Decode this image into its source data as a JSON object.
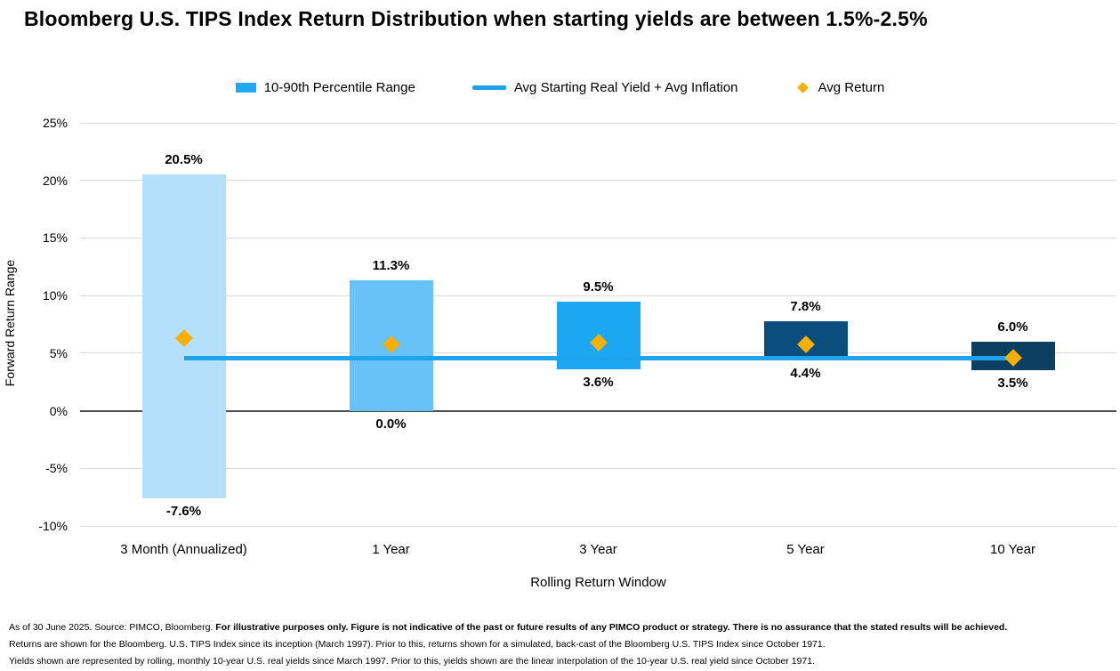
{
  "title": "Bloomberg U.S. TIPS Index Return Distribution when starting yields are between 1.5%-2.5%",
  "legend": [
    {
      "label": "10-90th Percentile Range",
      "icon": "bar-swatch-icon",
      "color": "#1FA9F2"
    },
    {
      "label": "Avg Starting Real Yield + Avg Inflation",
      "icon": "line-swatch-icon",
      "color": "#1FA0E8"
    },
    {
      "label": "Avg Return",
      "icon": "diamond-swatch-icon",
      "color": "#F8AF00"
    }
  ],
  "chart_data": {
    "type": "bar",
    "subtype": "floating-range-bars with horizontal reference line and diamond markers",
    "title": "Bloomberg U.S. TIPS Index Return Distribution when starting yields are between 1.5%-2.5%",
    "categories": [
      "3 Month (Annualized)",
      "1 Year",
      "3 Year",
      "5 Year",
      "10 Year"
    ],
    "series": [
      {
        "name": "10-90th Percentile Range",
        "type": "range_bar",
        "ranges": [
          {
            "low": -7.6,
            "high": 20.5
          },
          {
            "low": 0.0,
            "high": 11.3
          },
          {
            "low": 3.6,
            "high": 9.5
          },
          {
            "low": 4.4,
            "high": 7.8
          },
          {
            "low": 3.5,
            "high": 6.0
          }
        ],
        "bar_colors": [
          "#B5E0FB",
          "#67C2FA",
          "#1CA7F2",
          "#0B4D7C",
          "#0D3F63"
        ]
      },
      {
        "name": "Avg Starting Real Yield + Avg Inflation",
        "type": "line",
        "value": 4.6,
        "color": "#1FA3EC",
        "extent": "first-category-center to last-category-center"
      },
      {
        "name": "Avg Return",
        "type": "scatter",
        "marker": "diamond",
        "color": "#F8AF00",
        "values": [
          6.3,
          5.8,
          5.9,
          5.8,
          4.6
        ]
      }
    ],
    "xlabel": "Rolling Return Window",
    "ylabel": "Forward Return Range",
    "ylim": [
      -10,
      25
    ],
    "yticks": [
      25,
      20,
      15,
      10,
      5,
      0,
      -5,
      -10
    ],
    "ytick_format": "percent",
    "bar_label_format": "percent_one_decimal",
    "grid": "horizontal",
    "gridline_color": "#d9d9d9",
    "zero_line_color": "#4d4d4d",
    "legend_position": "top"
  },
  "footnotes": {
    "line1_normal": "As of 30 June 2025. Source: PIMCO, Bloomberg.",
    "line1_bold": "For illustrative purposes only. Figure is not indicative of the past or future results of any PIMCO product or strategy. There is no assurance that the stated results will be achieved.",
    "line2": "Returns are shown for the Bloomberg. U.S. TIPS Index since its inception (March 1997). Prior to this, returns shown for a simulated, back-cast of the Bloomberg U.S. TIPS Index since October 1971.",
    "line3": "Yields shown are represented by rolling, monthly 10-year U.S. real yields since March 1997. Prior to this, yields shown are the linear interpolation of the 10-year U.S. real yield since October 1971."
  }
}
